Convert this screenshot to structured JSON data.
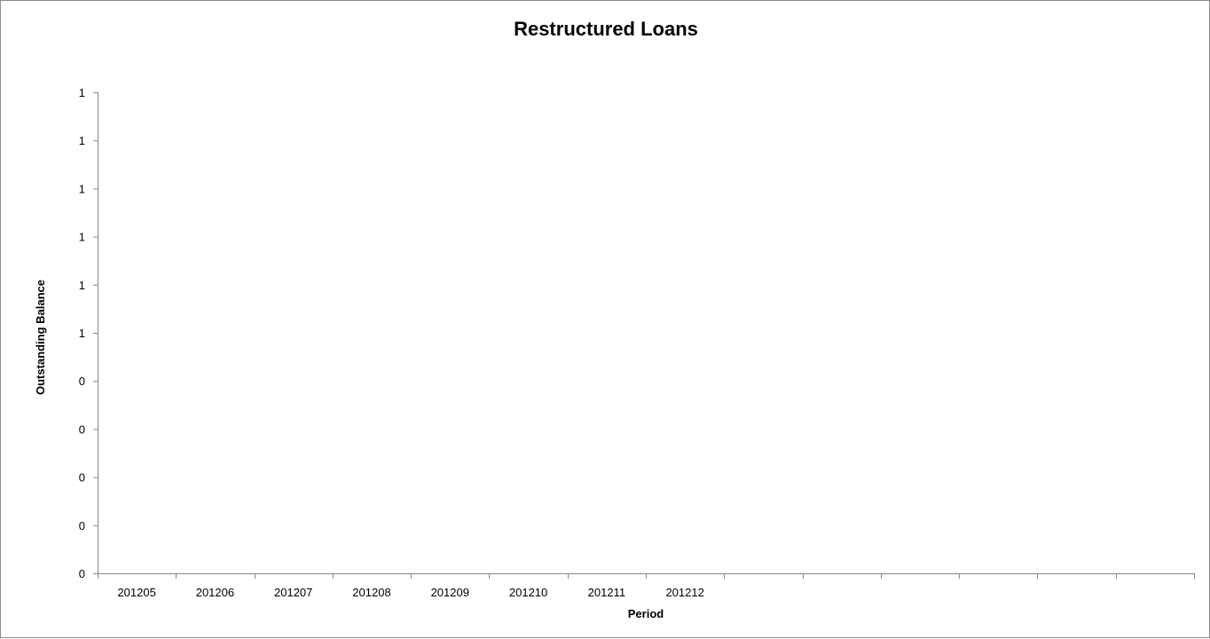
{
  "chart_data": {
    "type": "line",
    "title": "Restructured Loans",
    "xlabel": "Period",
    "ylabel": "Outstanding Balance",
    "categories": [
      "201205",
      "201206",
      "201207",
      "201208",
      "201209",
      "201210",
      "201211",
      "201212",
      "",
      "",
      "",
      "",
      "",
      ""
    ],
    "y_tick_labels": [
      "0",
      "0",
      "0",
      "0",
      "0",
      "1",
      "1",
      "1",
      "1",
      "1",
      "1"
    ],
    "series": [],
    "grid": false,
    "legend": "none"
  }
}
